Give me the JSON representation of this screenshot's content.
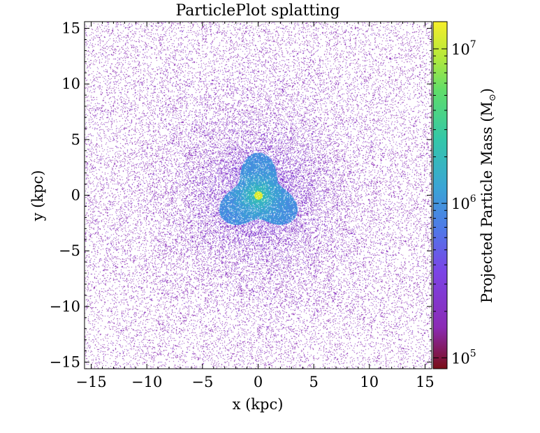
{
  "chart_data": {
    "type": "heatmap",
    "title": "ParticlePlot splatting",
    "xlabel": "x  (kpc)",
    "ylabel": "y  (kpc)",
    "colorbar_label": "Projected Particle Mass  (M",
    "colorbar_label_sub": "⊙",
    "colorbar_label_close": ")",
    "xlim": [
      -15.6,
      15.6
    ],
    "ylim": [
      -15.6,
      15.6
    ],
    "x_ticks": [
      -15,
      -10,
      -5,
      0,
      5,
      10,
      15
    ],
    "y_ticks": [
      -15,
      -10,
      -5,
      0,
      5,
      10,
      15
    ],
    "x_tick_labels": [
      "−15",
      "−10",
      "−5",
      "0",
      "5",
      "10",
      "15"
    ],
    "y_tick_labels": [
      "−15",
      "−10",
      "−5",
      "0",
      "5",
      "10",
      "15"
    ],
    "colorbar_scale": "log",
    "colorbar_range": [
      85000,
      15000000
    ],
    "colorbar_ticks": [
      {
        "base": "10",
        "exp": "5",
        "value": 100000
      },
      {
        "base": "10",
        "exp": "6",
        "value": 1000000
      },
      {
        "base": "10",
        "exp": "7",
        "value": 10000000
      }
    ],
    "colormap": [
      "#7a0e16",
      "#8b2bb5",
      "#7b44e6",
      "#4f78e8",
      "#3ba4d6",
      "#33c7a9",
      "#5fdd6a",
      "#b6e93a",
      "#f6ee2a"
    ],
    "background_color": "#ffffff",
    "grid": false,
    "center": [
      0,
      0
    ],
    "core_radius_kpc": 3.5,
    "peak_position": [
      0,
      0
    ]
  }
}
